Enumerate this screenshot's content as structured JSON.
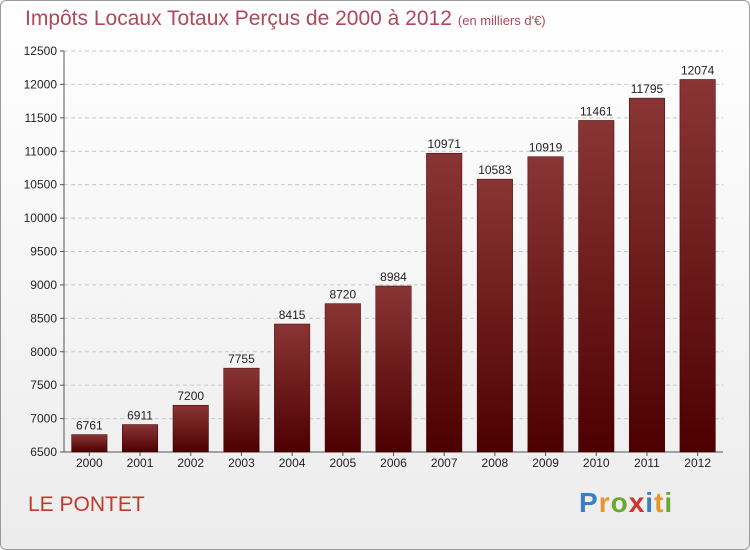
{
  "header": {
    "title": "Impôts Locaux Totaux Perçus de 2000 à 2012",
    "subtitle": "(en milliers d'€)"
  },
  "commune": "LE PONTET",
  "logo": {
    "text": "Proxiti",
    "letters": [
      "P",
      "r",
      "o",
      "x",
      "i",
      "t",
      "i"
    ]
  },
  "colors": {
    "title": "#b0485a",
    "commune": "#c0392b",
    "bar_top": "#8a3535",
    "bar_bottom": "#4d0000",
    "logo": [
      "#3a7fc1",
      "#e8962b",
      "#6aa830",
      "#d7302a",
      "#3a7fc1",
      "#e8962b",
      "#6aa830"
    ]
  },
  "chart_data": {
    "type": "bar",
    "title": "Impôts Locaux Totaux Perçus de 2000 à 2012",
    "subtitle": "(en milliers d'€)",
    "categories": [
      "2000",
      "2001",
      "2002",
      "2003",
      "2004",
      "2005",
      "2006",
      "2007",
      "2008",
      "2009",
      "2010",
      "2011",
      "2012"
    ],
    "values": [
      6761,
      6911,
      7200,
      7755,
      8415,
      8720,
      8984,
      10971,
      10583,
      10919,
      11461,
      11795,
      12074
    ],
    "ylim": [
      6500,
      12500
    ],
    "yticks": [
      6500,
      7000,
      7500,
      8000,
      8500,
      9000,
      9500,
      10000,
      10500,
      11000,
      11500,
      12000,
      12500
    ],
    "grid": true,
    "legend": "none"
  }
}
